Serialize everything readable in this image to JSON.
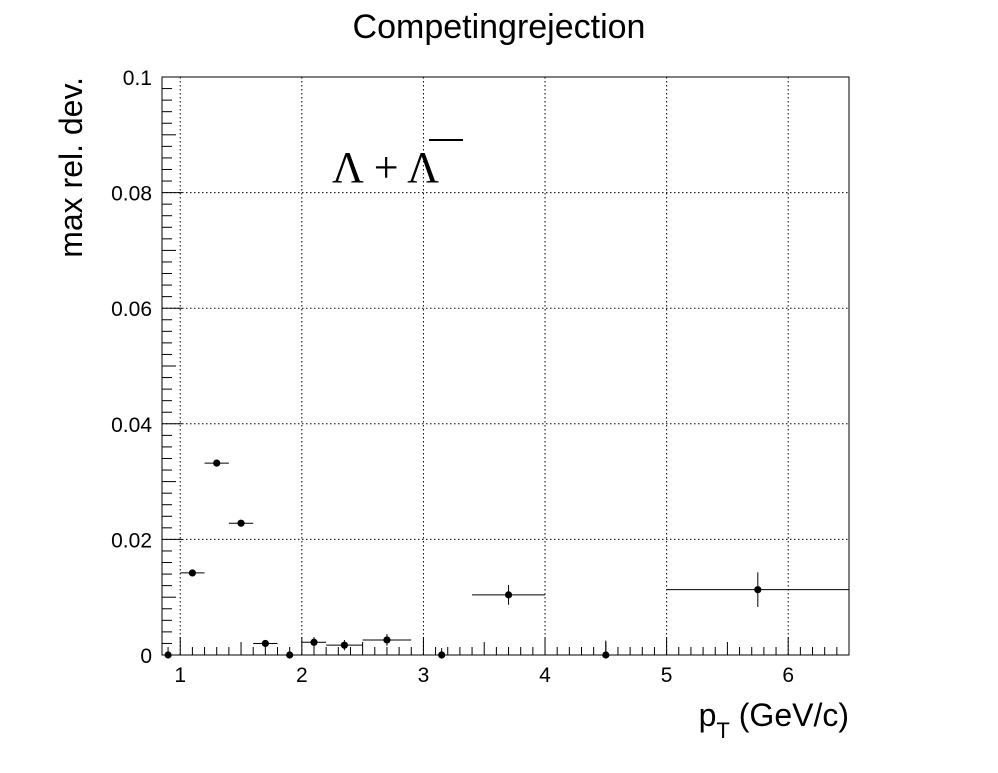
{
  "chart_data": {
    "type": "scatter",
    "title": "Competingrejection",
    "xlabel_main": "p",
    "xlabel_sub": "T",
    "xlabel_unit": " (GeV/c)",
    "ylabel": "max rel. dev.",
    "annotation_left": "Λ + ",
    "annotation_bar": "Λ",
    "xlim": [
      0.85,
      6.5
    ],
    "ylim": [
      0,
      0.1
    ],
    "x_ticks": [
      1,
      2,
      3,
      4,
      5,
      6
    ],
    "x_tick_labels": [
      "1",
      "2",
      "3",
      "4",
      "5",
      "6"
    ],
    "y_ticks": [
      0,
      0.02,
      0.04,
      0.06,
      0.08,
      0.1
    ],
    "y_tick_labels": [
      "0",
      "0.02",
      "0.04",
      "0.06",
      "0.08",
      "0.1"
    ],
    "grid": true,
    "points": [
      {
        "x": 0.9,
        "y": 0.0,
        "xerr": 0.0,
        "yerr": 0.0
      },
      {
        "x": 1.1,
        "y": 0.0142,
        "xerr": 0.1,
        "yerr": 0.0
      },
      {
        "x": 1.3,
        "y": 0.0332,
        "xerr": 0.1,
        "yerr": 0.0
      },
      {
        "x": 1.5,
        "y": 0.0228,
        "xerr": 0.1,
        "yerr": 0.0
      },
      {
        "x": 1.7,
        "y": 0.002,
        "xerr": 0.1,
        "yerr": 0.0004
      },
      {
        "x": 1.9,
        "y": 0.0,
        "xerr": 0.1,
        "yerr": 0.0004
      },
      {
        "x": 2.1,
        "y": 0.0022,
        "xerr": 0.1,
        "yerr": 0.0009
      },
      {
        "x": 2.35,
        "y": 0.0017,
        "xerr": 0.15,
        "yerr": 0.0009
      },
      {
        "x": 2.7,
        "y": 0.0026,
        "xerr": 0.2,
        "yerr": 0.001
      },
      {
        "x": 3.15,
        "y": 0.0,
        "xerr": 0.25,
        "yerr": 0.0012
      },
      {
        "x": 3.7,
        "y": 0.0104,
        "xerr": 0.3,
        "yerr": 0.0017
      },
      {
        "x": 4.5,
        "y": 0.0,
        "xerr": 0.5,
        "yerr": 0.0025
      },
      {
        "x": 5.75,
        "y": 0.0113,
        "xerr": 0.75,
        "yerr": 0.003
      }
    ]
  }
}
